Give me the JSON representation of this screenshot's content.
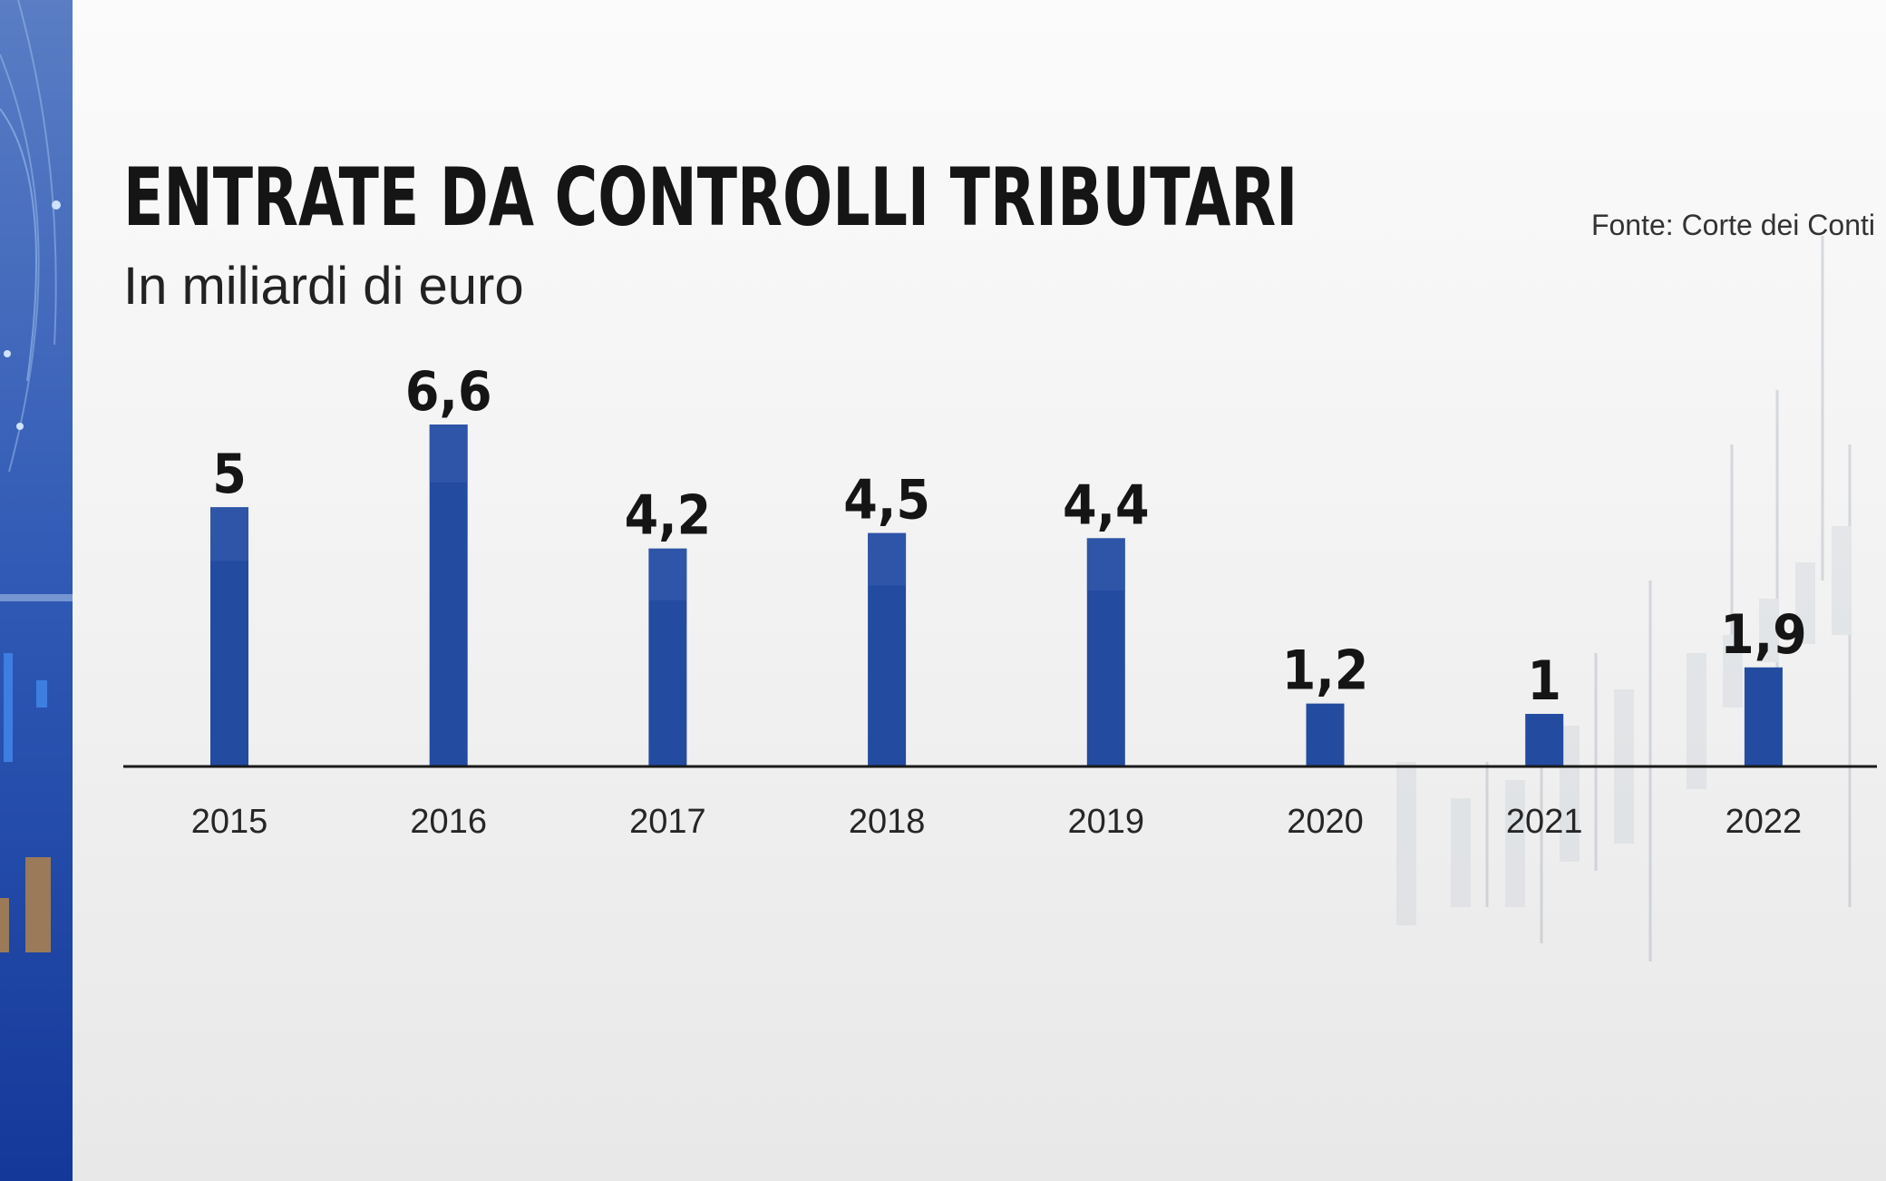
{
  "title": "ENTRATE DA CONTROLLI TRIBUTARI",
  "subtitle": "In miliardi di euro",
  "source": "Fonte: Corte dei Conti",
  "colors": {
    "bar": "#234ba0",
    "bar_top": "#3b5fae",
    "axis": "#1a1a1a",
    "side_panel": "#1c3f9a"
  },
  "chart_data": {
    "type": "bar",
    "title": "ENTRATE DA CONTROLLI TRIBUTARI",
    "subtitle": "In miliardi di euro",
    "categories": [
      "2015",
      "2016",
      "2017",
      "2018",
      "2019",
      "2020",
      "2021",
      "2022"
    ],
    "values": [
      5,
      6.6,
      4.2,
      4.5,
      4.4,
      1.2,
      1,
      1.9
    ],
    "value_labels": [
      "5",
      "6,6",
      "4,2",
      "4,5",
      "4,4",
      "1,2",
      "1",
      "1,9"
    ],
    "ylim": [
      0,
      6.6
    ],
    "grid": false,
    "legend": "none"
  }
}
